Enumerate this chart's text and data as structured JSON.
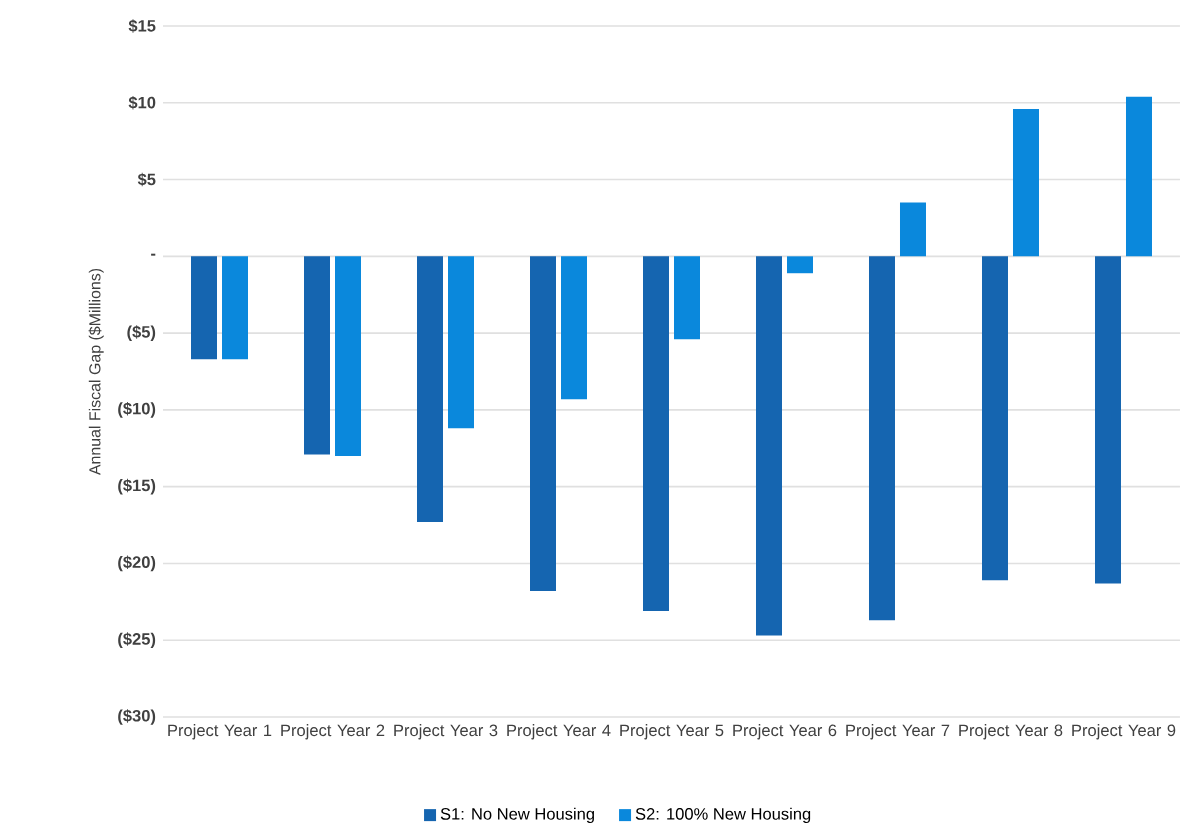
{
  "chart_data": {
    "type": "bar",
    "ylabel": "Annual Fiscal Gap ($Millions)",
    "categories": [
      "Project Year 1",
      "Project Year 2",
      "Project Year 3",
      "Project Year 4",
      "Project Year 5",
      "Project Year 6",
      "Project Year 7",
      "Project Year 8",
      "Project Year 9"
    ],
    "series": [
      {
        "name": "S1: No New Housing",
        "color": "#1565b0",
        "values": [
          -6.7,
          -12.9,
          -17.3,
          -21.8,
          -23.1,
          -24.7,
          -23.7,
          -21.1,
          -21.3
        ]
      },
      {
        "name": "S2: 100% New Housing",
        "color": "#0a88dc",
        "values": [
          -6.7,
          -13.0,
          -11.2,
          -9.3,
          -5.4,
          -1.1,
          3.5,
          9.6,
          10.4
        ]
      }
    ],
    "ylim": [
      -30,
      15
    ],
    "yticks": [
      {
        "value": -30,
        "label": "($30)"
      },
      {
        "value": -25,
        "label": "($25)"
      },
      {
        "value": -20,
        "label": "($20)"
      },
      {
        "value": -15,
        "label": "($15)"
      },
      {
        "value": -10,
        "label": "($10)"
      },
      {
        "value": -5,
        "label": "($5)"
      },
      {
        "value": 0,
        "label": "-"
      },
      {
        "value": 5,
        "label": "$5"
      },
      {
        "value": 10,
        "label": "$10"
      },
      {
        "value": 15,
        "label": "$15"
      }
    ],
    "grid": "y",
    "legend": "bottom"
  }
}
